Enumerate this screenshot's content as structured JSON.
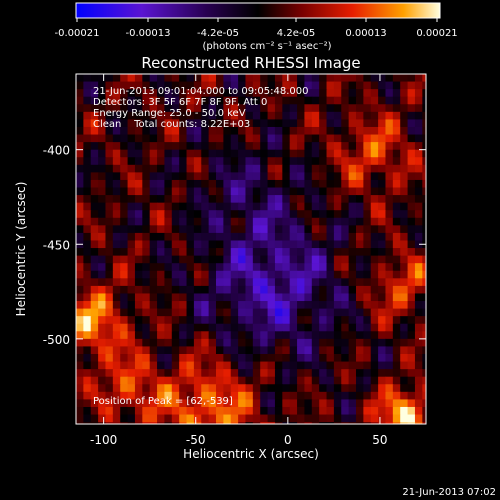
{
  "chart_data": {
    "type": "heatmap",
    "title": "Reconstructed RHESSI Image",
    "xlabel": "Heliocentric X (arcsec)",
    "ylabel": "Heliocentric Y (arcsec)",
    "xlim": [
      -115,
      75
    ],
    "ylim": [
      -545,
      -360
    ],
    "x_ticks": [
      -100,
      -50,
      0,
      50
    ],
    "y_ticks": [
      -400,
      -450,
      -500
    ],
    "grid_cell_arcsec": 4,
    "colorbar": {
      "ticks": [
        "-0.00021",
        "-0.00013",
        "-4.2e-05",
        "4.2e-05",
        "0.00013",
        "0.00021"
      ],
      "unit_text": "(photons cm⁻² s⁻¹ asec⁻²)",
      "range": [
        -0.00021,
        0.00021
      ],
      "colors": [
        "#0000ff",
        "#5a14d2",
        "#280050",
        "#000000",
        "#780000",
        "#e61e00",
        "#ffa000",
        "#ffffe0"
      ]
    },
    "annotations": {
      "time": "21-Jun-2013 09:01:04.000 to 09:05:48.000",
      "detectors": "Detectors: 3F 5F 6F 7F 8F 9F, Att 0",
      "energy": "Energy Range: 25.0 - 50.0 keV",
      "method": "Clean    Total counts: 8.22E+03",
      "peak": "Position of Peak = [62,-539]"
    },
    "peak": {
      "x": 62,
      "y": -539
    }
  },
  "footer": {
    "timestamp": "21-Jun-2013 07:02"
  }
}
